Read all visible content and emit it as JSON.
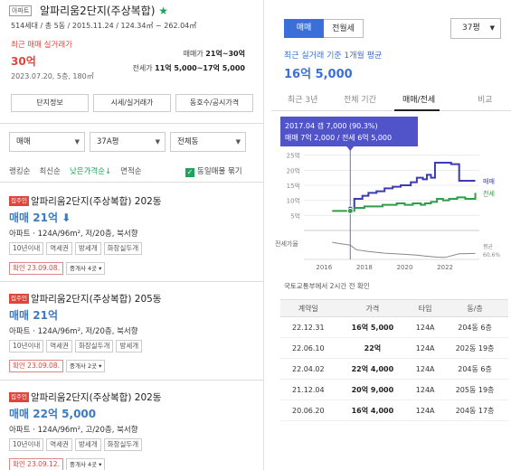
{
  "property": {
    "badge": "아파트",
    "title": "알파리움2단지(주상복합)",
    "info": "514세대 / 총 5동 / 2015.11.24 / 124.34㎡ ~ 262.04㎡"
  },
  "recent": {
    "label": "최근 매매 실거래가",
    "price": "30억",
    "date": "2023.07.20, 5층, 180㎡",
    "sale_range_label": "매매가",
    "sale_range": "21억~30억",
    "jeonse_range_label": "전세가",
    "jeonse_range": "11억 5,000~17억 5,000"
  },
  "buttons": [
    "단지정보",
    "시세/실거래가",
    "동호수/공시가격"
  ],
  "filters": {
    "type": "매매",
    "size": "37A평",
    "dong": "전체동"
  },
  "sort": {
    "items": [
      "랭킹순",
      "최신순",
      "낮은가격순↓",
      "면적순"
    ],
    "active": 2,
    "check_label": "동일매물 묶기"
  },
  "listings": [
    {
      "tag": "집주인",
      "title": "알파리움2단지(주상복합) 202동",
      "price": "매매 21억",
      "price_down": true,
      "detail": "아파트 · 124A/96m², 저/20층, 북서향",
      "tags": [
        "10년이내",
        "역세권",
        "방세개",
        "화장실두개"
      ],
      "confirm": "확인 23.09.08.",
      "agents": "중개사 4곳"
    },
    {
      "tag": "집주인",
      "title": "알파리움2단지(주상복합) 205동",
      "price": "매매 21억",
      "price_down": false,
      "detail": "아파트 · 124A/96m², 저/20층, 북서향",
      "tags": [
        "10년이내",
        "역세권",
        "화장실두개",
        "방세개"
      ],
      "confirm": "확인 23.09.08.",
      "agents": "중개사 2곳"
    },
    {
      "tag": "집주인",
      "title": "알파리움2단지(주상복합) 202동",
      "price": "매매 22억 5,000",
      "price_down": false,
      "detail": "아파트 · 124A/96m², 고/20층, 북서향",
      "tags": [
        "10년이내",
        "역세권",
        "방세개",
        "화장실두개"
      ],
      "confirm": "확인 23.09.12.",
      "agents": "중개사 4곳"
    }
  ],
  "right": {
    "toggle": [
      "매매",
      "전월세"
    ],
    "pyeong": "37평",
    "avg_label": "최근 실거래 기준 1개월 평균",
    "avg_price": "16억 5,000",
    "tabs": [
      "최근 3년",
      "전체 기간",
      "매매/전세",
      "비교"
    ],
    "tab_active": 2,
    "tooltip_line1": "2017.04  갭 7,000 (90.3%)",
    "tooltip_line2": "매매 7억 2,000 / 전세 6억 5,000",
    "note": "국토교통부에서 2시간 전 확인",
    "table_headers": [
      "계약일",
      "가격",
      "타입",
      "동/층"
    ],
    "table_rows": [
      [
        "22.12.31",
        "16억 5,000",
        "124A",
        "204동 6층"
      ],
      [
        "22.06.10",
        "22억",
        "124A",
        "202동 19층"
      ],
      [
        "22.04.02",
        "22억 4,000",
        "124A",
        "204동 6층"
      ],
      [
        "21.12.04",
        "20억 9,000",
        "124A",
        "205동 19층"
      ],
      [
        "20.06.20",
        "16억 4,000",
        "124A",
        "204동 17층"
      ]
    ]
  },
  "colors": {
    "accent": "#3a6fd8",
    "red": "#e0453c",
    "green": "#22a35b",
    "sale_line": "#3b3bb5",
    "jeonse_line": "#2f9e4a"
  },
  "chart_data": {
    "type": "line",
    "y_ticks": [
      "25억",
      "20억",
      "15억",
      "10억",
      "5억"
    ],
    "ylim": [
      0,
      27
    ],
    "x_ticks": [
      "2016",
      "2018",
      "2020",
      "2022"
    ],
    "xlim": [
      2015,
      2023.7
    ],
    "series": [
      {
        "name": "매매",
        "points": [
          [
            2017.3,
            7.2
          ],
          [
            2017.5,
            10.5
          ],
          [
            2017.9,
            11.5
          ],
          [
            2018.2,
            12.5
          ],
          [
            2018.6,
            13
          ],
          [
            2019,
            14
          ],
          [
            2019.4,
            14.5
          ],
          [
            2019.8,
            15
          ],
          [
            2020.3,
            16
          ],
          [
            2020.6,
            17.5
          ],
          [
            2020.9,
            17
          ],
          [
            2021.1,
            18.5
          ],
          [
            2021.3,
            17.5
          ],
          [
            2021.5,
            22.5
          ],
          [
            2021.9,
            22.5
          ],
          [
            2022.1,
            22.5
          ],
          [
            2022.3,
            22
          ],
          [
            2022.5,
            22
          ],
          [
            2022.7,
            16.5
          ],
          [
            2023.5,
            16.5
          ]
        ]
      },
      {
        "name": "전세",
        "points": [
          [
            2016.4,
            6.5
          ],
          [
            2017.3,
            6.5
          ],
          [
            2017.5,
            7.5
          ],
          [
            2018.0,
            8
          ],
          [
            2018.5,
            8
          ],
          [
            2018.9,
            8.5
          ],
          [
            2019.3,
            8.5
          ],
          [
            2019.6,
            9
          ],
          [
            2020.0,
            8.5
          ],
          [
            2020.4,
            9
          ],
          [
            2020.8,
            8.5
          ],
          [
            2021.0,
            9
          ],
          [
            2021.3,
            9.5
          ],
          [
            2021.6,
            10.5
          ],
          [
            2021.9,
            10
          ],
          [
            2022.2,
            10.5
          ],
          [
            2022.6,
            11
          ],
          [
            2023.0,
            10.5
          ],
          [
            2023.5,
            12.5
          ]
        ]
      },
      {
        "name": "전세가율",
        "points": [
          [
            2016.4,
            100
          ],
          [
            2017.3,
            90
          ],
          [
            2017.6,
            74
          ],
          [
            2018.2,
            68
          ],
          [
            2019,
            62
          ],
          [
            2020,
            58
          ],
          [
            2020.6,
            55
          ],
          [
            2021,
            52
          ],
          [
            2021.6,
            48
          ],
          [
            2022,
            47
          ],
          [
            2022.7,
            60
          ],
          [
            2023.5,
            61
          ]
        ]
      }
    ],
    "ratio_label": "전세가율",
    "ratio_end_label": "평균",
    "ratio_end_value": "60.6%"
  }
}
